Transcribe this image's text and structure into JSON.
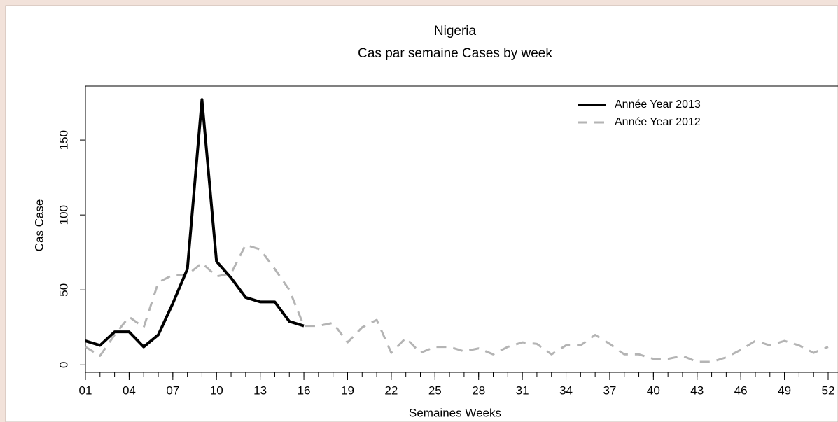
{
  "chart_data": {
    "type": "line",
    "title": "Nigeria",
    "subtitle": "Cas par semaine Cases by week",
    "x_label": "Semaines Weeks",
    "y_label": "Cas Case",
    "xlim": [
      1,
      52
    ],
    "ylim": [
      -5,
      186
    ],
    "xticks": [
      {
        "value": 1,
        "label": "01"
      },
      {
        "value": 4,
        "label": "04"
      },
      {
        "value": 7,
        "label": "07"
      },
      {
        "value": 10,
        "label": "10"
      },
      {
        "value": 13,
        "label": "13"
      },
      {
        "value": 16,
        "label": "16"
      },
      {
        "value": 19,
        "label": "19"
      },
      {
        "value": 22,
        "label": "22"
      },
      {
        "value": 25,
        "label": "25"
      },
      {
        "value": 28,
        "label": "28"
      },
      {
        "value": 31,
        "label": "31"
      },
      {
        "value": 34,
        "label": "34"
      },
      {
        "value": 37,
        "label": "37"
      },
      {
        "value": 40,
        "label": "40"
      },
      {
        "value": 43,
        "label": "43"
      },
      {
        "value": 46,
        "label": "46"
      },
      {
        "value": 49,
        "label": "49"
      },
      {
        "value": 52,
        "label": "52"
      }
    ],
    "xminorticks": [
      1,
      2,
      3,
      4,
      5,
      6,
      7,
      8,
      9,
      10,
      11,
      12,
      13,
      14,
      15,
      16,
      17,
      18,
      19,
      20,
      21,
      22,
      23,
      24,
      25,
      26,
      27,
      28,
      29,
      30,
      31,
      32,
      33,
      34,
      35,
      36,
      37,
      38,
      39,
      40,
      41,
      42,
      43,
      44,
      45,
      46,
      47,
      48,
      49,
      50,
      51,
      52
    ],
    "yticks": [
      0,
      50,
      100,
      150
    ],
    "series": [
      {
        "name": "Année Year 2013",
        "color": "#000000",
        "style": "solid",
        "x": [
          1,
          2,
          3,
          4,
          5,
          6,
          7,
          8,
          9,
          10,
          11,
          12,
          13,
          14,
          15,
          16
        ],
        "values": [
          16,
          13,
          22,
          22,
          12,
          20,
          41,
          64,
          177,
          69,
          58,
          45,
          42,
          42,
          29,
          26
        ]
      },
      {
        "name": "Année Year 2012",
        "color": "#b4b4b4",
        "style": "dashed",
        "x": [
          1,
          2,
          3,
          4,
          5,
          6,
          7,
          8,
          9,
          10,
          11,
          12,
          13,
          14,
          15,
          16,
          17,
          18,
          19,
          20,
          21,
          22,
          23,
          24,
          25,
          26,
          27,
          28,
          29,
          30,
          31,
          32,
          33,
          34,
          35,
          36,
          37,
          38,
          39,
          40,
          41,
          42,
          43,
          44,
          45,
          46,
          47,
          48,
          49,
          50,
          51,
          52
        ],
        "values": [
          12,
          6,
          20,
          32,
          25,
          55,
          60,
          60,
          68,
          59,
          61,
          80,
          77,
          64,
          50,
          26,
          26,
          28,
          15,
          25,
          30,
          8,
          18,
          8,
          12,
          12,
          9,
          11,
          7,
          12,
          15,
          14,
          7,
          13,
          13,
          20,
          14,
          7,
          7,
          4,
          4,
          6,
          2,
          2,
          5,
          10,
          16,
          13,
          16,
          13,
          8,
          12
        ]
      }
    ]
  }
}
